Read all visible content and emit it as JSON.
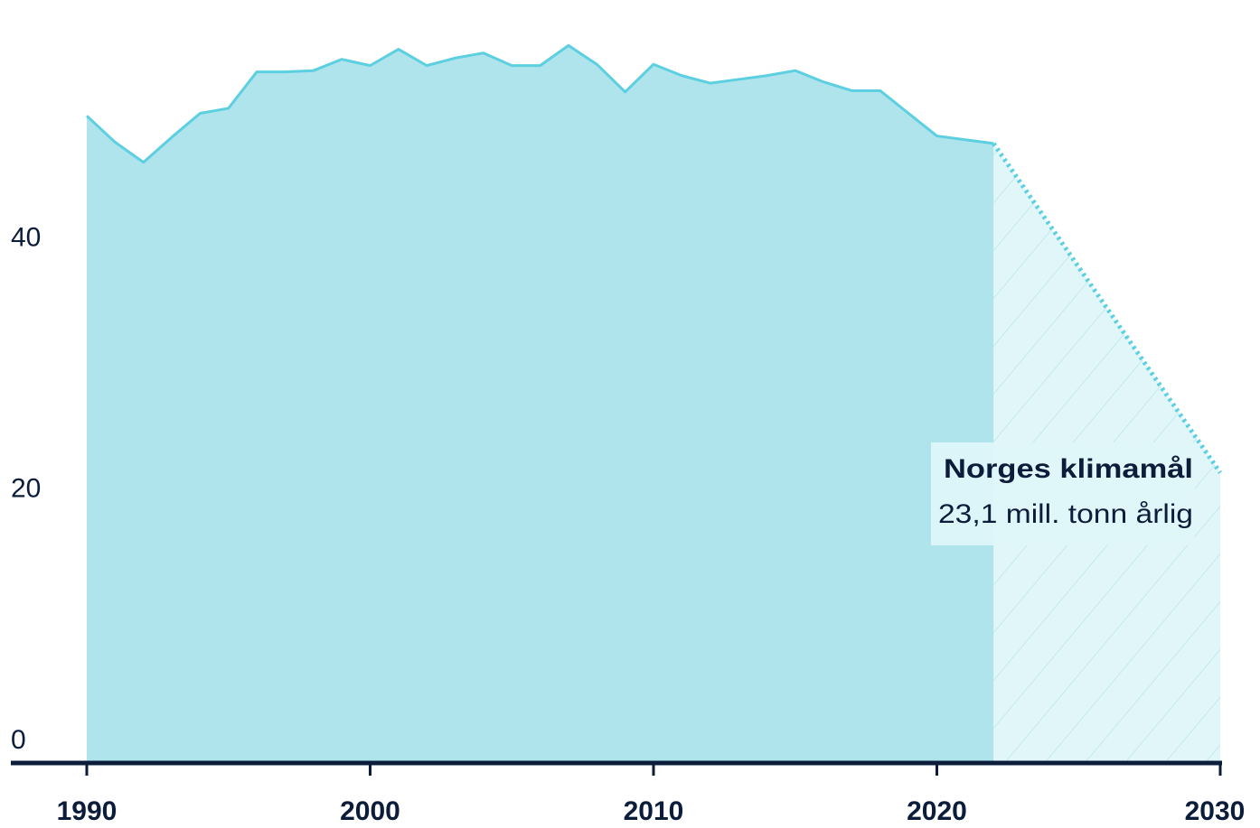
{
  "chart_data": {
    "type": "area",
    "x": [
      1990,
      1991,
      1992,
      1993,
      1994,
      1995,
      1996,
      1997,
      1998,
      1999,
      2000,
      2001,
      2002,
      2003,
      2004,
      2005,
      2006,
      2007,
      2008,
      2009,
      2010,
      2011,
      2012,
      2013,
      2014,
      2015,
      2016,
      2017,
      2018,
      2019,
      2020,
      2021,
      2022
    ],
    "series": [
      {
        "color": "#5ccfe0",
        "fill": "#afe4ec",
        "values": [
          51.5,
          49.4,
          47.8,
          49.8,
          51.7,
          52.1,
          55.0,
          55.0,
          55.1,
          56.0,
          55.5,
          56.8,
          55.5,
          56.1,
          56.5,
          55.5,
          55.5,
          57.1,
          55.6,
          53.4,
          55.6,
          54.7,
          54.1,
          54.4,
          54.7,
          55.1,
          54.2,
          53.5,
          53.5,
          51.7,
          49.9,
          49.6,
          49.3
        ]
      }
    ],
    "target": {
      "color": "#5ccfe0",
      "fill": "#e0f6f9",
      "x": [
        2022,
        2030
      ],
      "values": [
        49.3,
        23.1
      ]
    },
    "annotation": {
      "title": "Norges klimamål",
      "text": "23,1 mill. tonn årlig"
    },
    "xlim": [
      1990,
      2030
    ],
    "xticks": [
      1990,
      2000,
      2010,
      2020,
      2030
    ],
    "ylim": [
      0,
      60
    ],
    "yticks": [
      0,
      20,
      40
    ],
    "grid": true
  }
}
